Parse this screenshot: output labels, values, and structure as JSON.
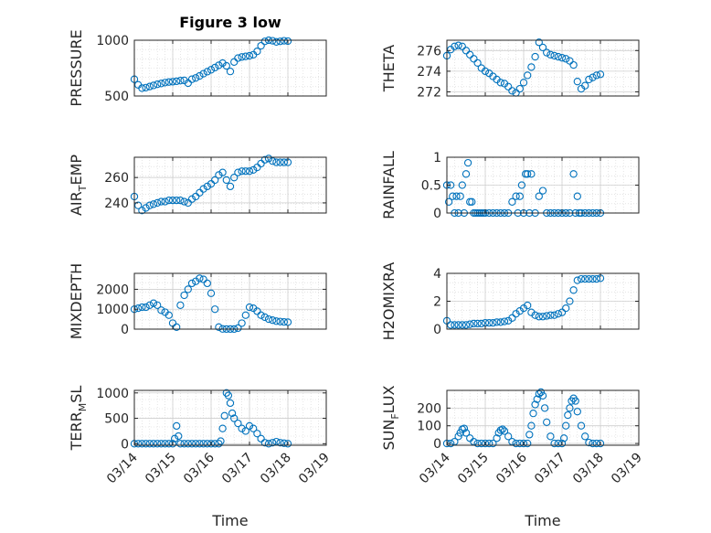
{
  "figure": {
    "title": "Figure 3 low",
    "marker_color": "#0072BD",
    "axis_color": "#262626",
    "grid_color": "#d4d4d4"
  },
  "chart_data": [
    {
      "type": "scatter",
      "ylabel": "PRESSURE",
      "ylim": [
        500,
        1000
      ],
      "yticks": [
        500,
        1000
      ],
      "xlim": [
        0,
        5
      ],
      "x": [
        0,
        0.1,
        0.2,
        0.3,
        0.4,
        0.5,
        0.6,
        0.7,
        0.8,
        0.9,
        1.0,
        1.1,
        1.2,
        1.3,
        1.4,
        1.5,
        1.6,
        1.7,
        1.8,
        1.9,
        2.0,
        2.1,
        2.2,
        2.3,
        2.4,
        2.5,
        2.6,
        2.7,
        2.8,
        2.9,
        3.0,
        3.1,
        3.2,
        3.3,
        3.4,
        3.5,
        3.6,
        3.7,
        3.8,
        3.9,
        4.0
      ],
      "y": [
        650,
        600,
        570,
        575,
        585,
        595,
        605,
        612,
        620,
        625,
        628,
        632,
        638,
        640,
        615,
        650,
        662,
        680,
        700,
        718,
        735,
        755,
        775,
        795,
        770,
        720,
        805,
        840,
        850,
        855,
        860,
        870,
        900,
        950,
        990,
        1000,
        995,
        985,
        990,
        995,
        992
      ],
      "grid": true
    },
    {
      "type": "scatter",
      "ylabel": "THETA",
      "ylim": [
        271.6,
        277
      ],
      "yticks": [
        272,
        274,
        276
      ],
      "xlim": [
        0,
        5
      ],
      "x": [
        0,
        0.1,
        0.2,
        0.3,
        0.4,
        0.5,
        0.6,
        0.7,
        0.8,
        0.9,
        1.0,
        1.1,
        1.2,
        1.3,
        1.4,
        1.5,
        1.6,
        1.7,
        1.8,
        1.9,
        2.0,
        2.1,
        2.2,
        2.3,
        2.4,
        2.5,
        2.6,
        2.7,
        2.8,
        2.9,
        3.0,
        3.1,
        3.2,
        3.3,
        3.4,
        3.5,
        3.6,
        3.7,
        3.8,
        3.9,
        4.0
      ],
      "y": [
        275.5,
        276.1,
        276.4,
        276.5,
        276.4,
        276.0,
        275.6,
        275.2,
        274.8,
        274.3,
        274.0,
        273.8,
        273.5,
        273.2,
        272.9,
        272.8,
        272.5,
        272.1,
        271.9,
        272.3,
        272.9,
        273.6,
        274.4,
        275.4,
        276.8,
        276.3,
        275.8,
        275.6,
        275.5,
        275.4,
        275.3,
        275.2,
        275.0,
        274.6,
        273.0,
        272.3,
        272.6,
        273.2,
        273.4,
        273.6,
        273.7
      ],
      "grid": true
    },
    {
      "type": "scatter",
      "ylabel_main": "AIR",
      "ylabel_sub": "T",
      "ylabel_rest": "EMP",
      "ylim": [
        232,
        276
      ],
      "yticks": [
        240,
        260
      ],
      "xlim": [
        0,
        5
      ],
      "x": [
        0,
        0.1,
        0.2,
        0.3,
        0.4,
        0.5,
        0.6,
        0.7,
        0.8,
        0.9,
        1.0,
        1.1,
        1.2,
        1.3,
        1.4,
        1.5,
        1.6,
        1.7,
        1.8,
        1.9,
        2.0,
        2.1,
        2.2,
        2.3,
        2.4,
        2.5,
        2.6,
        2.7,
        2.8,
        2.9,
        3.0,
        3.1,
        3.2,
        3.3,
        3.4,
        3.5,
        3.6,
        3.7,
        3.8,
        3.9,
        4.0
      ],
      "y": [
        245,
        238,
        234,
        236,
        238,
        239,
        240,
        241,
        241,
        242,
        242,
        242,
        242,
        241,
        240,
        243,
        245,
        248,
        251,
        253,
        255,
        258,
        262,
        264,
        258,
        253,
        260,
        264,
        265,
        265,
        265,
        266,
        268,
        271,
        274,
        275,
        273,
        272,
        272,
        272,
        272
      ],
      "grid": true
    },
    {
      "type": "scatter",
      "ylabel": "RAINFALL",
      "ylim": [
        0,
        1
      ],
      "yticks": [
        0,
        0.5,
        1
      ],
      "xlim": [
        0,
        5
      ],
      "x": [
        0,
        0.05,
        0.1,
        0.15,
        0.2,
        0.25,
        0.3,
        0.35,
        0.4,
        0.45,
        0.5,
        0.55,
        0.6,
        0.65,
        0.7,
        0.75,
        0.8,
        0.85,
        0.9,
        0.95,
        1.0,
        1.1,
        1.2,
        1.3,
        1.4,
        1.5,
        1.6,
        1.7,
        1.8,
        1.85,
        1.9,
        1.95,
        2.0,
        2.05,
        2.1,
        2.15,
        2.2,
        2.3,
        2.4,
        2.5,
        2.6,
        2.7,
        2.8,
        2.9,
        3.0,
        3.1,
        3.2,
        3.3,
        3.35,
        3.4,
        3.45,
        3.5,
        3.6,
        3.7,
        3.8,
        3.9,
        4.0
      ],
      "y": [
        0.5,
        0.2,
        0.5,
        0.3,
        0.0,
        0.3,
        0.0,
        0.3,
        0.5,
        0.0,
        0.7,
        0.9,
        0.2,
        0.2,
        0.0,
        0.0,
        0.0,
        0.0,
        0.0,
        0.0,
        0.0,
        0.0,
        0.0,
        0.0,
        0.0,
        0.0,
        0.0,
        0.2,
        0.3,
        0.0,
        0.3,
        0.5,
        0.0,
        0.7,
        0.7,
        0.0,
        0.7,
        0.0,
        0.3,
        0.4,
        0.0,
        0.0,
        0.0,
        0.0,
        0.0,
        0.0,
        0.0,
        0.7,
        0.0,
        0.3,
        0.0,
        0.0,
        0.0,
        0.0,
        0.0,
        0.0,
        0.0
      ],
      "grid": true
    },
    {
      "type": "scatter",
      "ylabel": "MIXDEPTH",
      "ylim": [
        0,
        2800
      ],
      "yticks": [
        0,
        1000,
        2000
      ],
      "xlim": [
        0,
        5
      ],
      "x": [
        0,
        0.1,
        0.2,
        0.3,
        0.4,
        0.5,
        0.6,
        0.7,
        0.8,
        0.9,
        1.0,
        1.1,
        1.2,
        1.3,
        1.4,
        1.5,
        1.6,
        1.7,
        1.8,
        1.9,
        2.0,
        2.1,
        2.2,
        2.3,
        2.4,
        2.5,
        2.6,
        2.7,
        2.8,
        2.9,
        3.0,
        3.1,
        3.2,
        3.3,
        3.4,
        3.5,
        3.6,
        3.7,
        3.8,
        3.9,
        4.0
      ],
      "y": [
        1000,
        1050,
        1100,
        1100,
        1200,
        1300,
        1200,
        950,
        850,
        700,
        300,
        100,
        1200,
        1700,
        2000,
        2300,
        2400,
        2550,
        2500,
        2300,
        1800,
        1000,
        100,
        10,
        5,
        5,
        5,
        50,
        300,
        700,
        1100,
        1050,
        900,
        700,
        600,
        500,
        450,
        400,
        380,
        360,
        350
      ],
      "grid": true
    },
    {
      "type": "scatter",
      "ylabel": "H2OMIXRA",
      "ylim": [
        0,
        4
      ],
      "yticks": [
        0,
        2,
        4
      ],
      "xlim": [
        0,
        5
      ],
      "x": [
        0,
        0.1,
        0.2,
        0.3,
        0.4,
        0.5,
        0.6,
        0.7,
        0.8,
        0.9,
        1.0,
        1.1,
        1.2,
        1.3,
        1.4,
        1.5,
        1.6,
        1.7,
        1.8,
        1.9,
        2.0,
        2.1,
        2.2,
        2.3,
        2.4,
        2.5,
        2.6,
        2.7,
        2.8,
        2.9,
        3.0,
        3.1,
        3.2,
        3.3,
        3.4,
        3.5,
        3.6,
        3.7,
        3.8,
        3.9,
        4.0
      ],
      "y": [
        0.6,
        0.3,
        0.3,
        0.3,
        0.3,
        0.3,
        0.35,
        0.4,
        0.4,
        0.4,
        0.45,
        0.45,
        0.45,
        0.5,
        0.5,
        0.55,
        0.6,
        0.8,
        1.1,
        1.3,
        1.5,
        1.7,
        1.2,
        1.0,
        0.9,
        0.9,
        0.95,
        1.0,
        1.0,
        1.1,
        1.2,
        1.5,
        2.0,
        2.8,
        3.5,
        3.6,
        3.6,
        3.6,
        3.6,
        3.6,
        3.65
      ],
      "grid": true
    },
    {
      "type": "scatter",
      "ylabel_main": "TERR",
      "ylabel_sub": "M",
      "ylabel_rest": "SL",
      "ylim": [
        -30,
        1050
      ],
      "yticks": [
        0,
        500,
        1000
      ],
      "xlim": [
        0,
        5
      ],
      "x": [
        0,
        0.1,
        0.2,
        0.3,
        0.4,
        0.5,
        0.6,
        0.7,
        0.8,
        0.9,
        1.0,
        1.05,
        1.1,
        1.15,
        1.2,
        1.3,
        1.4,
        1.5,
        1.6,
        1.7,
        1.8,
        1.9,
        2.0,
        2.1,
        2.2,
        2.25,
        2.3,
        2.35,
        2.4,
        2.45,
        2.5,
        2.55,
        2.6,
        2.7,
        2.8,
        2.9,
        3.0,
        3.1,
        3.2,
        3.3,
        3.4,
        3.5,
        3.6,
        3.7,
        3.8,
        3.9,
        4.0
      ],
      "y": [
        0,
        0,
        0,
        0,
        0,
        0,
        0,
        0,
        0,
        0,
        0,
        100,
        350,
        150,
        0,
        0,
        0,
        0,
        0,
        0,
        0,
        0,
        0,
        0,
        0,
        50,
        300,
        550,
        1000,
        950,
        800,
        600,
        500,
        400,
        300,
        250,
        350,
        300,
        200,
        100,
        20,
        0,
        20,
        40,
        20,
        10,
        0
      ],
      "grid": true
    },
    {
      "type": "scatter",
      "ylabel_main": "SUN",
      "ylabel_sub": "F",
      "ylabel_rest": "LUX",
      "ylim": [
        -10,
        300
      ],
      "yticks": [
        0,
        100,
        200
      ],
      "xlim": [
        0,
        5
      ],
      "x": [
        0,
        0.1,
        0.2,
        0.3,
        0.35,
        0.4,
        0.45,
        0.5,
        0.6,
        0.7,
        0.8,
        0.9,
        1.0,
        1.1,
        1.2,
        1.3,
        1.35,
        1.4,
        1.45,
        1.5,
        1.6,
        1.7,
        1.8,
        1.9,
        2.0,
        2.1,
        2.15,
        2.2,
        2.25,
        2.3,
        2.35,
        2.4,
        2.45,
        2.5,
        2.55,
        2.6,
        2.7,
        2.8,
        2.9,
        3.0,
        3.05,
        3.1,
        3.15,
        3.2,
        3.25,
        3.3,
        3.35,
        3.4,
        3.5,
        3.6,
        3.7,
        3.8,
        3.9,
        4.0
      ],
      "y": [
        0,
        0,
        10,
        40,
        60,
        80,
        85,
        60,
        30,
        10,
        0,
        0,
        0,
        0,
        0,
        30,
        60,
        75,
        80,
        70,
        40,
        10,
        0,
        0,
        0,
        0,
        50,
        100,
        170,
        220,
        250,
        280,
        290,
        270,
        200,
        120,
        40,
        0,
        0,
        0,
        30,
        100,
        160,
        200,
        240,
        255,
        240,
        180,
        100,
        40,
        5,
        0,
        0,
        0
      ],
      "grid": true
    }
  ],
  "x_axis": {
    "tick_labels": [
      "03/14",
      "03/15",
      "03/16",
      "03/17",
      "03/18",
      "03/19"
    ],
    "xlabel": "Time"
  }
}
